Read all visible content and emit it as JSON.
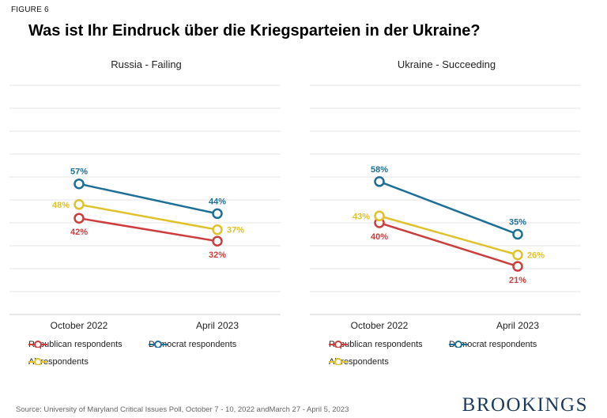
{
  "figure_label": "FIGURE 6",
  "title": "Was ist Ihr Eindruck über die Kriegsparteien in der Ukraine?",
  "chart_data": [
    {
      "type": "line",
      "title": "Russia - Failing",
      "categories": [
        "October 2022",
        "April 2023"
      ],
      "series": [
        {
          "name": "Republican respondents",
          "color": "#cc3d3d",
          "values": [
            42,
            32
          ],
          "labels": [
            "42%",
            "32%"
          ]
        },
        {
          "name": "Democrat respondents",
          "color": "#1d6f96",
          "values": [
            57,
            44
          ],
          "labels": [
            "57%",
            "44%"
          ]
        },
        {
          "name": "All respondents",
          "color": "#dfc22b",
          "values": [
            48,
            37
          ],
          "labels": [
            "48%",
            "37%"
          ]
        }
      ],
      "ylim": [
        0,
        100
      ],
      "grid": true,
      "legend": "bottom"
    },
    {
      "type": "line",
      "title": "Ukraine - Succeeding",
      "categories": [
        "October 2022",
        "April 2023"
      ],
      "series": [
        {
          "name": "Republican respondents",
          "color": "#cc3d3d",
          "values": [
            40,
            21
          ],
          "labels": [
            "40%",
            "21%"
          ]
        },
        {
          "name": "Democrat respondents",
          "color": "#1d6f96",
          "values": [
            58,
            35
          ],
          "labels": [
            "58%",
            "35%"
          ]
        },
        {
          "name": "All respondents",
          "color": "#dfc22b",
          "values": [
            43,
            26
          ],
          "labels": [
            "43%",
            "26%"
          ]
        }
      ],
      "ylim": [
        0,
        100
      ],
      "grid": true,
      "legend": "bottom"
    }
  ],
  "source": "Source: University of Maryland Critical Issues Poll, October 7 - 10, 2022 andMarch 27 - April 5, 2023",
  "brand": "BROOKINGS"
}
